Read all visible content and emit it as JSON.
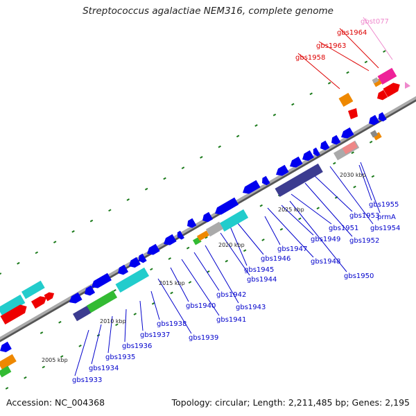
{
  "title": "Streptococcus agalactiae NEM316, complete genome",
  "footer": {
    "accession": "Accession: NC_004368",
    "topology": "Topology: circular; Length: 2,211,485 bp; Genes: 2,195"
  },
  "scale_labels": [
    "2005 kbp",
    "2010 kbp",
    "2015 kbp",
    "2020 kbp",
    "2025 kbp",
    "2030 kbp"
  ],
  "gene_labels": [
    {
      "name": "gbs1933",
      "color": "blue"
    },
    {
      "name": "gbs1934",
      "color": "blue"
    },
    {
      "name": "gbs1935",
      "color": "blue"
    },
    {
      "name": "gbs1936",
      "color": "blue"
    },
    {
      "name": "gbs1937",
      "color": "blue"
    },
    {
      "name": "gbs1938",
      "color": "blue"
    },
    {
      "name": "gbs1939",
      "color": "blue"
    },
    {
      "name": "gbs1940",
      "color": "blue"
    },
    {
      "name": "gbs1941",
      "color": "blue"
    },
    {
      "name": "gbs1942",
      "color": "blue"
    },
    {
      "name": "gbs1943",
      "color": "blue"
    },
    {
      "name": "gbs1944",
      "color": "blue"
    },
    {
      "name": "gbs1945",
      "color": "blue"
    },
    {
      "name": "gbs1946",
      "color": "blue"
    },
    {
      "name": "gbs1947",
      "color": "blue"
    },
    {
      "name": "gbs1948",
      "color": "blue"
    },
    {
      "name": "gbs1949",
      "color": "blue"
    },
    {
      "name": "gbs1950",
      "color": "blue"
    },
    {
      "name": "gbs1951",
      "color": "blue"
    },
    {
      "name": "gbs1952",
      "color": "blue"
    },
    {
      "name": "gbs1953",
      "color": "blue"
    },
    {
      "name": "gbs1954",
      "color": "blue"
    },
    {
      "name": "gbs1955",
      "color": "blue"
    },
    {
      "name": "prmA",
      "color": "blue"
    },
    {
      "name": "gbs1958",
      "color": "red"
    },
    {
      "name": "gbs1963",
      "color": "red"
    },
    {
      "name": "gbs1964",
      "color": "red"
    },
    {
      "name": "gbst077",
      "color": "pink"
    }
  ],
  "colors": {
    "blue_label": "#0000cc",
    "red_label": "#dd0000",
    "pink_label": "#ee88cc",
    "gene_blue": "#0000ee",
    "gene_navy": "#3c3c90",
    "gene_cyan": "#22cccc",
    "gene_green": "#33bb33",
    "gene_red": "#ee0000",
    "gene_orange": "#ee8800",
    "gene_pink": "#ee2299",
    "gene_gray": "#aaaaaa",
    "backbone": "#999999",
    "tick": "#1a7a1a"
  }
}
